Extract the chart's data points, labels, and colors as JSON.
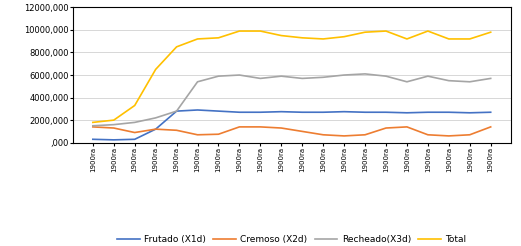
{
  "x_labels": [
    "1900ra",
    "1900ra",
    "1900ra",
    "1900ra",
    "1900ra",
    "1900ra",
    "1900ra",
    "1900ra",
    "1900ra",
    "1900ra",
    "1900ra",
    "1900ra",
    "1900ra",
    "1900ra",
    "1900ra",
    "1900ra",
    "1900ra",
    "1900ra",
    "1900ra",
    "1900ra"
  ],
  "frutado": [
    300000,
    250000,
    300000,
    1200000,
    2800000,
    2900000,
    2800000,
    2700000,
    2700000,
    2750000,
    2700000,
    2700000,
    2750000,
    2700000,
    2700000,
    2650000,
    2700000,
    2700000,
    2650000,
    2700000
  ],
  "cremoso": [
    1400000,
    1300000,
    900000,
    1200000,
    1100000,
    700000,
    750000,
    1400000,
    1400000,
    1300000,
    1000000,
    700000,
    600000,
    700000,
    1300000,
    1400000,
    700000,
    600000,
    700000,
    1400000
  ],
  "recheado": [
    1500000,
    1600000,
    1800000,
    2200000,
    2800000,
    5400000,
    5900000,
    6000000,
    5700000,
    5900000,
    5700000,
    5800000,
    6000000,
    6100000,
    5900000,
    5400000,
    5900000,
    5500000,
    5400000,
    5700000
  ],
  "total": [
    1800000,
    2000000,
    3300000,
    6500000,
    8500000,
    9200000,
    9300000,
    9900000,
    9900000,
    9500000,
    9300000,
    9200000,
    9400000,
    9800000,
    9900000,
    9200000,
    9900000,
    9200000,
    9200000,
    9800000
  ],
  "frutado_color": "#4472C4",
  "cremoso_color": "#ED7D31",
  "recheado_color": "#A5A5A5",
  "total_color": "#FFC000",
  "ylim": [
    0,
    12000000
  ],
  "yticks": [
    0,
    2000000,
    4000000,
    6000000,
    8000000,
    10000000,
    12000000
  ],
  "ytick_labels": [
    ",000",
    "2000,000",
    "4000,000",
    "6000,000",
    "8000,000",
    "10000,000",
    "12000,000"
  ],
  "legend_labels": [
    "Frutado (X1d)",
    "Cremoso (X2d)",
    "Recheado(X3d)",
    "Total"
  ],
  "bg_color": "#FFFFFF",
  "border_color": "#000000",
  "line_width": 1.2
}
